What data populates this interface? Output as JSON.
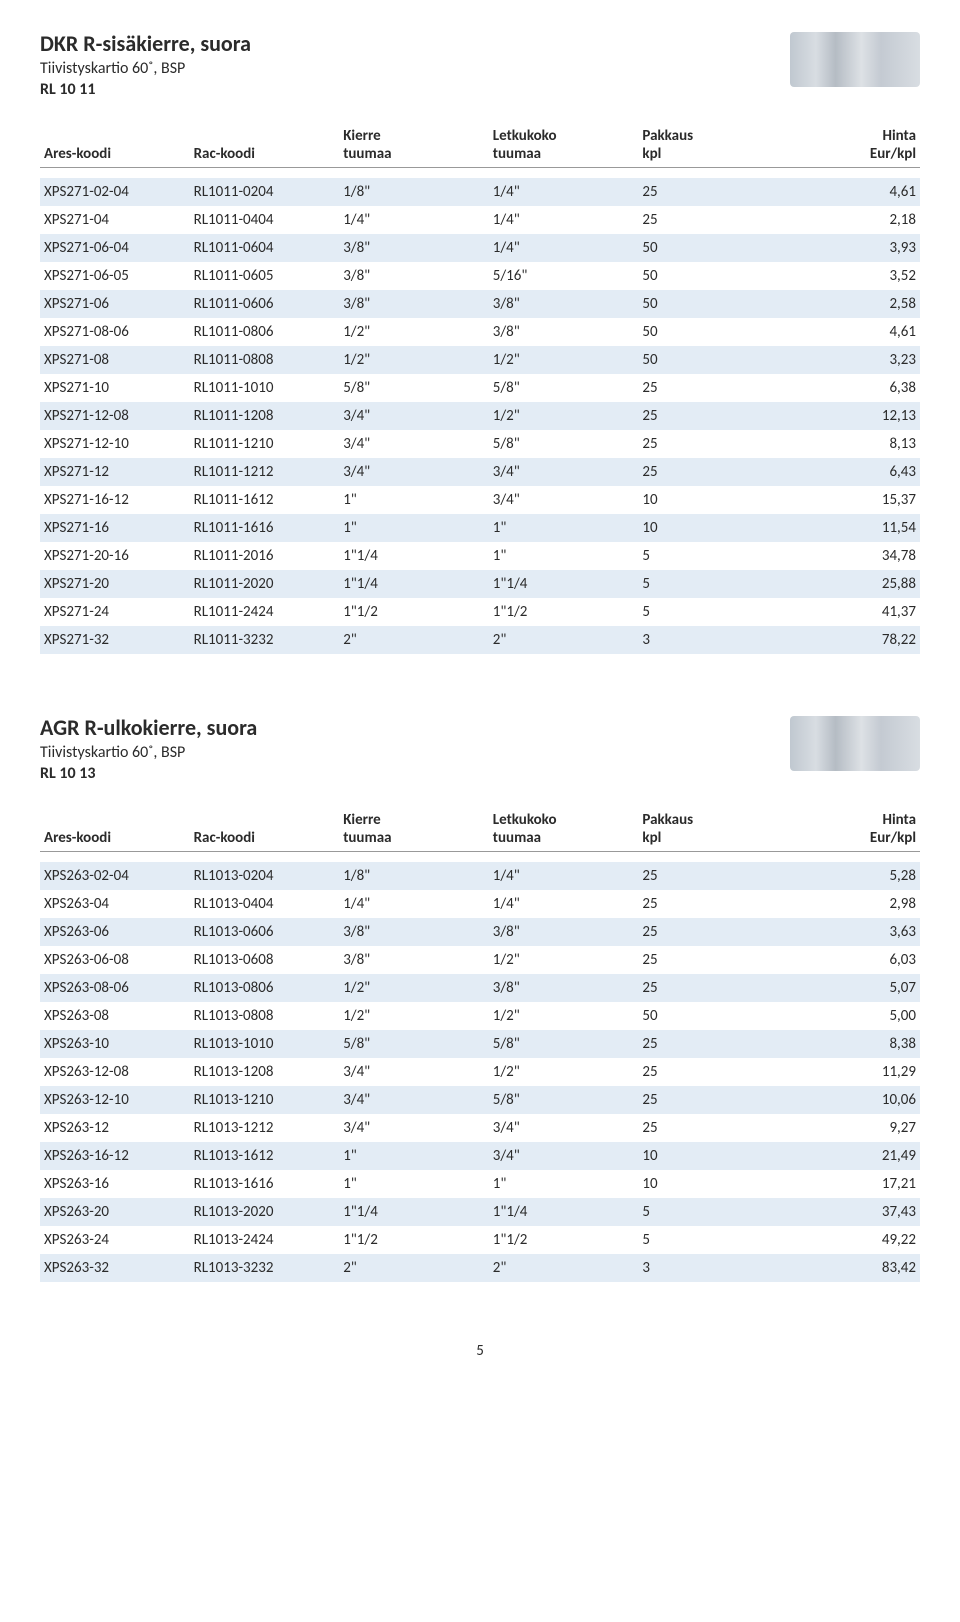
{
  "page_number": "5",
  "columns": {
    "ares": "Ares-koodi",
    "rac": "Rac-koodi",
    "kierre": "Kierre",
    "kierre_sub": "tuumaa",
    "letku": "Letkukoko",
    "letku_sub": "tuumaa",
    "pakkaus": "Pakkaus",
    "pakkaus_sub": "kpl",
    "hinta": "Hinta",
    "hinta_sub": "Eur/kpl"
  },
  "colors": {
    "row_band": "#e3ecf5",
    "text": "#2b2b2b",
    "border": "#999999",
    "background": "#ffffff"
  },
  "sections": [
    {
      "title": "DKR R-sisäkierre, suora",
      "subtitle": "Tiivistyskartio 60˚, BSP",
      "model": "RL 10 11",
      "rows": [
        {
          "ares": "XPS271-02-04",
          "rac": "RL1011-0204",
          "kierre": "1/8\"",
          "letku": "1/4\"",
          "pak": "25",
          "hinta": "4,61"
        },
        {
          "ares": "XPS271-04",
          "rac": "RL1011-0404",
          "kierre": "1/4\"",
          "letku": "1/4\"",
          "pak": "25",
          "hinta": "2,18"
        },
        {
          "ares": "XPS271-06-04",
          "rac": "RL1011-0604",
          "kierre": "3/8\"",
          "letku": "1/4\"",
          "pak": "50",
          "hinta": "3,93"
        },
        {
          "ares": "XPS271-06-05",
          "rac": "RL1011-0605",
          "kierre": "3/8\"",
          "letku": "5/16\"",
          "pak": "50",
          "hinta": "3,52"
        },
        {
          "ares": "XPS271-06",
          "rac": "RL1011-0606",
          "kierre": "3/8\"",
          "letku": "3/8\"",
          "pak": "50",
          "hinta": "2,58"
        },
        {
          "ares": "XPS271-08-06",
          "rac": "RL1011-0806",
          "kierre": "1/2\"",
          "letku": "3/8\"",
          "pak": "50",
          "hinta": "4,61"
        },
        {
          "ares": "XPS271-08",
          "rac": "RL1011-0808",
          "kierre": "1/2\"",
          "letku": "1/2\"",
          "pak": "50",
          "hinta": "3,23"
        },
        {
          "ares": "XPS271-10",
          "rac": "RL1011-1010",
          "kierre": "5/8\"",
          "letku": "5/8\"",
          "pak": "25",
          "hinta": "6,38"
        },
        {
          "ares": "XPS271-12-08",
          "rac": "RL1011-1208",
          "kierre": "3/4\"",
          "letku": "1/2\"",
          "pak": "25",
          "hinta": "12,13"
        },
        {
          "ares": "XPS271-12-10",
          "rac": "RL1011-1210",
          "kierre": "3/4\"",
          "letku": "5/8\"",
          "pak": "25",
          "hinta": "8,13"
        },
        {
          "ares": "XPS271-12",
          "rac": "RL1011-1212",
          "kierre": "3/4\"",
          "letku": "3/4\"",
          "pak": "25",
          "hinta": "6,43"
        },
        {
          "ares": "XPS271-16-12",
          "rac": "RL1011-1612",
          "kierre": "1\"",
          "letku": "3/4\"",
          "pak": "10",
          "hinta": "15,37"
        },
        {
          "ares": "XPS271-16",
          "rac": "RL1011-1616",
          "kierre": "1\"",
          "letku": "1\"",
          "pak": "10",
          "hinta": "11,54"
        },
        {
          "ares": "XPS271-20-16",
          "rac": "RL1011-2016",
          "kierre": "1\"1/4",
          "letku": "1\"",
          "pak": "5",
          "hinta": "34,78"
        },
        {
          "ares": "XPS271-20",
          "rac": "RL1011-2020",
          "kierre": "1\"1/4",
          "letku": "1\"1/4",
          "pak": "5",
          "hinta": "25,88"
        },
        {
          "ares": "XPS271-24",
          "rac": "RL1011-2424",
          "kierre": "1\"1/2",
          "letku": "1\"1/2",
          "pak": "5",
          "hinta": "41,37"
        },
        {
          "ares": "XPS271-32",
          "rac": "RL1011-3232",
          "kierre": "2\"",
          "letku": "2\"",
          "pak": "3",
          "hinta": "78,22"
        }
      ]
    },
    {
      "title": "AGR R-ulkokierre, suora",
      "subtitle": "Tiivistyskartio 60˚, BSP",
      "model": "RL 10 13",
      "rows": [
        {
          "ares": "XPS263-02-04",
          "rac": "RL1013-0204",
          "kierre": "1/8\"",
          "letku": "1/4\"",
          "pak": "25",
          "hinta": "5,28"
        },
        {
          "ares": "XPS263-04",
          "rac": "RL1013-0404",
          "kierre": "1/4\"",
          "letku": "1/4\"",
          "pak": "25",
          "hinta": "2,98"
        },
        {
          "ares": "XPS263-06",
          "rac": "RL1013-0606",
          "kierre": "3/8\"",
          "letku": "3/8\"",
          "pak": "25",
          "hinta": "3,63"
        },
        {
          "ares": "XPS263-06-08",
          "rac": "RL1013-0608",
          "kierre": "3/8\"",
          "letku": "1/2\"",
          "pak": "25",
          "hinta": "6,03"
        },
        {
          "ares": "XPS263-08-06",
          "rac": "RL1013-0806",
          "kierre": "1/2\"",
          "letku": "3/8\"",
          "pak": "25",
          "hinta": "5,07"
        },
        {
          "ares": "XPS263-08",
          "rac": "RL1013-0808",
          "kierre": "1/2\"",
          "letku": "1/2\"",
          "pak": "50",
          "hinta": "5,00"
        },
        {
          "ares": "XPS263-10",
          "rac": "RL1013-1010",
          "kierre": "5/8\"",
          "letku": "5/8\"",
          "pak": "25",
          "hinta": "8,38"
        },
        {
          "ares": "XPS263-12-08",
          "rac": "RL1013-1208",
          "kierre": "3/4\"",
          "letku": "1/2\"",
          "pak": "25",
          "hinta": "11,29"
        },
        {
          "ares": "XPS263-12-10",
          "rac": "RL1013-1210",
          "kierre": "3/4\"",
          "letku": "5/8\"",
          "pak": "25",
          "hinta": "10,06"
        },
        {
          "ares": "XPS263-12",
          "rac": "RL1013-1212",
          "kierre": "3/4\"",
          "letku": "3/4\"",
          "pak": "25",
          "hinta": "9,27"
        },
        {
          "ares": "XPS263-16-12",
          "rac": "RL1013-1612",
          "kierre": "1\"",
          "letku": "3/4\"",
          "pak": "10",
          "hinta": "21,49"
        },
        {
          "ares": "XPS263-16",
          "rac": "RL1013-1616",
          "kierre": "1\"",
          "letku": "1\"",
          "pak": "10",
          "hinta": "17,21"
        },
        {
          "ares": "XPS263-20",
          "rac": "RL1013-2020",
          "kierre": "1\"1/4",
          "letku": "1\"1/4",
          "pak": "5",
          "hinta": "37,43"
        },
        {
          "ares": "XPS263-24",
          "rac": "RL1013-2424",
          "kierre": "1\"1/2",
          "letku": "1\"1/2",
          "pak": "5",
          "hinta": "49,22"
        },
        {
          "ares": "XPS263-32",
          "rac": "RL1013-3232",
          "kierre": "2\"",
          "letku": "2\"",
          "pak": "3",
          "hinta": "83,42"
        }
      ]
    }
  ]
}
